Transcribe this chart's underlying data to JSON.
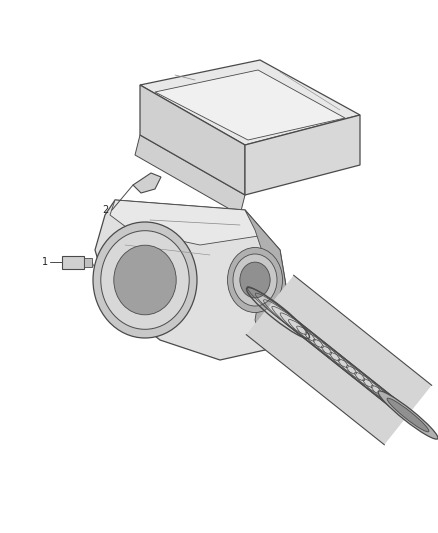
{
  "background_color": "#ffffff",
  "line_color": "#4a4a4a",
  "light_line_color": "#888888",
  "fill_light": "#e8e8e8",
  "fill_mid": "#d0d0d0",
  "fill_dark": "#b0b0b0",
  "label_1": "1",
  "label_2": "2",
  "fig_width": 4.38,
  "fig_height": 5.33,
  "dpi": 100
}
